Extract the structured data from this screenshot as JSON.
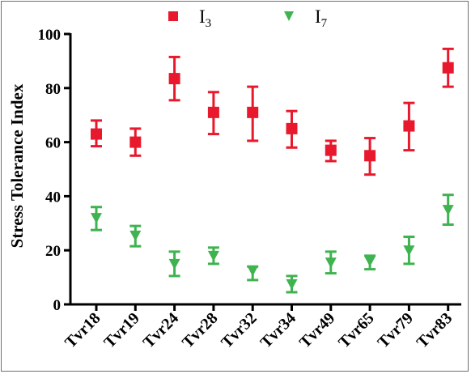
{
  "chart_data": {
    "type": "scatter",
    "ylabel": "Stress Tolerance Index",
    "xlabel": "",
    "ylim": [
      0,
      100
    ],
    "yticks": [
      0,
      20,
      40,
      60,
      80,
      100
    ],
    "categories": [
      "Tvr18",
      "Tvr19",
      "Tvr24",
      "Tvr28",
      "Tvr32",
      "Tvr34",
      "Tvr49",
      "Tvr65",
      "Tvr79",
      "Tvr83"
    ],
    "grid": false,
    "legend_position": "top",
    "series": [
      {
        "name": "I",
        "name_sub": "3",
        "marker": "square",
        "color": "#e8192c",
        "values": [
          63,
          60,
          83.5,
          71,
          71,
          65,
          57,
          55,
          66,
          87.5
        ],
        "err_upper": [
          68,
          65,
          91.5,
          78.5,
          80.5,
          71.5,
          60.5,
          61.5,
          74.5,
          94.5
        ],
        "err_lower": [
          58.5,
          55,
          75.5,
          63,
          60.5,
          58,
          53,
          48,
          57,
          80.5
        ]
      },
      {
        "name": "I",
        "name_sub": "7",
        "marker": "triangle-down",
        "color": "#3fb34f",
        "values": [
          32,
          25.5,
          15,
          18,
          12.5,
          7.5,
          15.5,
          16,
          20,
          35
        ],
        "err_upper": [
          36,
          29,
          19.5,
          21,
          14,
          10.5,
          19.5,
          18,
          25,
          40.5
        ],
        "err_lower": [
          27.5,
          21.5,
          10.5,
          15,
          9,
          4.5,
          11.5,
          13,
          15,
          29.5
        ]
      }
    ]
  }
}
